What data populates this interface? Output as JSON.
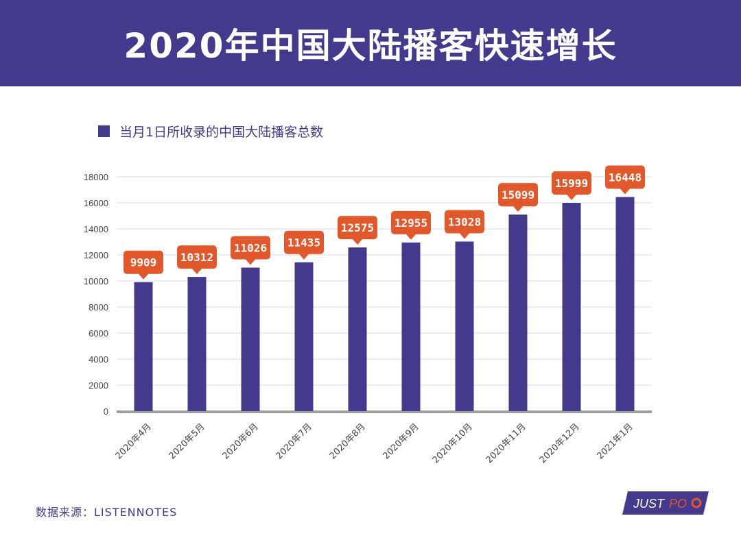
{
  "header": {
    "title": "2020年中国大陆播客快速增长"
  },
  "legend": {
    "label": "当月1日所收录的中国大陆播客总数"
  },
  "footer": {
    "source": "数据来源：LISTENNOTES"
  },
  "logo": {
    "text_main": "JUST",
    "text_accent": "PO"
  },
  "colors": {
    "brand": "#433a8e",
    "bar": "#433a8e",
    "callout": "#e2582a",
    "grid": "#d9d9d9",
    "axis": "#9e9e9e"
  },
  "chart_data": {
    "type": "bar",
    "categories": [
      "2020年4月",
      "2020年5月",
      "2020年6月",
      "2020年7月",
      "2020年8月",
      "2020年9月",
      "2020年10月",
      "2020年11月",
      "2020年12月",
      "2021年1月"
    ],
    "series": [
      {
        "name": "当月1日所收录的中国大陆播客总数",
        "values": [
          9909,
          10312,
          11026,
          11435,
          12575,
          12955,
          13028,
          15099,
          15999,
          16448
        ]
      }
    ],
    "ylim": [
      0,
      18000
    ],
    "yticks": [
      0,
      2000,
      4000,
      6000,
      8000,
      10000,
      12000,
      14000,
      16000,
      18000
    ],
    "grid": true,
    "data_labels": true,
    "legend_position": "top-left"
  }
}
